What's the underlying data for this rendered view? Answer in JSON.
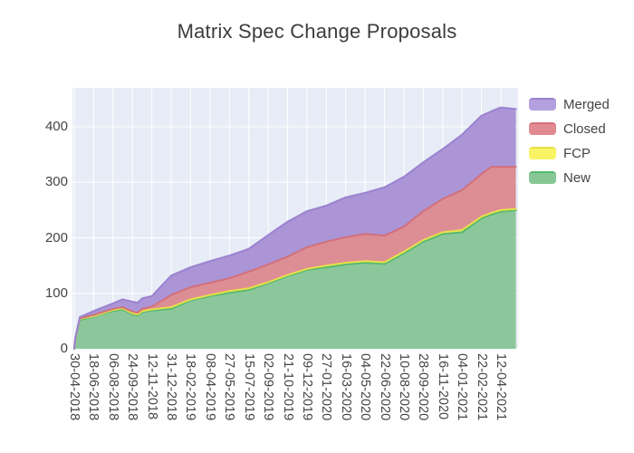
{
  "title": "Matrix Spec Change Proposals",
  "colors": {
    "plot_background": "#e7ecf6",
    "grid": "#ffffff",
    "axis_label": "#444444",
    "title_text": "#3d3d3d"
  },
  "legend": {
    "items": [
      {
        "label": "Merged",
        "fill": "#b3a0de",
        "line": "#9b82d0"
      },
      {
        "label": "Closed",
        "fill": "#e18b90",
        "line": "#d2707b"
      },
      {
        "label": "FCP",
        "fill": "#f9f464",
        "line": "#e8e04a"
      },
      {
        "label": "New",
        "fill": "#87c795",
        "line": "#55b86e"
      }
    ]
  },
  "chart_data": {
    "type": "area",
    "stacked": true,
    "title": "Matrix Spec Change Proposals",
    "xlabel": "",
    "ylabel": "",
    "x_unit": "days since 30-04-2018",
    "x_days": [
      0,
      3,
      14,
      49,
      98,
      122,
      147,
      160,
      172,
      196,
      245,
      294,
      343,
      392,
      441,
      490,
      539,
      588,
      637,
      686,
      735,
      784,
      833,
      882,
      931,
      980,
      1029,
      1054,
      1078,
      1116
    ],
    "series": [
      {
        "name": "New",
        "fill": "#8cc79b",
        "line": "#55b86e",
        "values": [
          0,
          20,
          52,
          58,
          68,
          71,
          62,
          60,
          66,
          69,
          72,
          87,
          95,
          101,
          106,
          118,
          131,
          142,
          147,
          152,
          155,
          153,
          172,
          193,
          207,
          210,
          235,
          242,
          247,
          250
        ]
      },
      {
        "name": "FCP",
        "fill": "#f3ee79",
        "line": "#e8e04a",
        "values": [
          0,
          1,
          2,
          1,
          2,
          2,
          2,
          2,
          2,
          2,
          3,
          2,
          2,
          3,
          3,
          2,
          2,
          2,
          3,
          3,
          3,
          3,
          3,
          3,
          3,
          4,
          3,
          3,
          3,
          2
        ]
      },
      {
        "name": "Closed",
        "fill": "#dd8e95",
        "line": "#d2707b",
        "values": [
          0,
          0,
          1,
          2,
          2,
          2,
          3,
          3,
          4,
          5,
          22,
          22,
          22,
          23,
          30,
          32,
          33,
          39,
          43,
          46,
          49,
          48,
          45,
          52,
          60,
          72,
          77,
          83,
          78,
          76
        ]
      },
      {
        "name": "Merged",
        "fill": "#ab95d6",
        "line": "#9b82d0",
        "values": [
          0,
          0,
          2,
          7,
          10,
          14,
          18,
          18,
          19,
          19,
          35,
          36,
          39,
          41,
          41,
          53,
          63,
          65,
          65,
          72,
          74,
          87,
          90,
          88,
          90,
          100,
          105,
          100,
          107,
          104
        ]
      }
    ],
    "x_tick_days": [
      0,
      49,
      98,
      147,
      196,
      245,
      294,
      343,
      392,
      441,
      490,
      539,
      588,
      637,
      686,
      735,
      784,
      833,
      882,
      931,
      980,
      1029,
      1078
    ],
    "x_tick_labels": [
      "30-04-2018",
      "18-06-2018",
      "06-08-2018",
      "24-09-2018",
      "12-11-2018",
      "31-12-2018",
      "18-02-2019",
      "08-04-2019",
      "27-05-2019",
      "15-07-2019",
      "02-09-2019",
      "21-10-2019",
      "09-12-2019",
      "27-01-2020",
      "16-03-2020",
      "04-05-2020",
      "22-06-2020",
      "10-08-2020",
      "28-09-2020",
      "16-11-2020",
      "04-01-2021",
      "22-02-2021",
      "12-04-2021"
    ],
    "y_ticks": [
      0,
      100,
      200,
      300,
      400
    ],
    "ylim": [
      0,
      470
    ],
    "grid": true,
    "legend_position": "right"
  }
}
